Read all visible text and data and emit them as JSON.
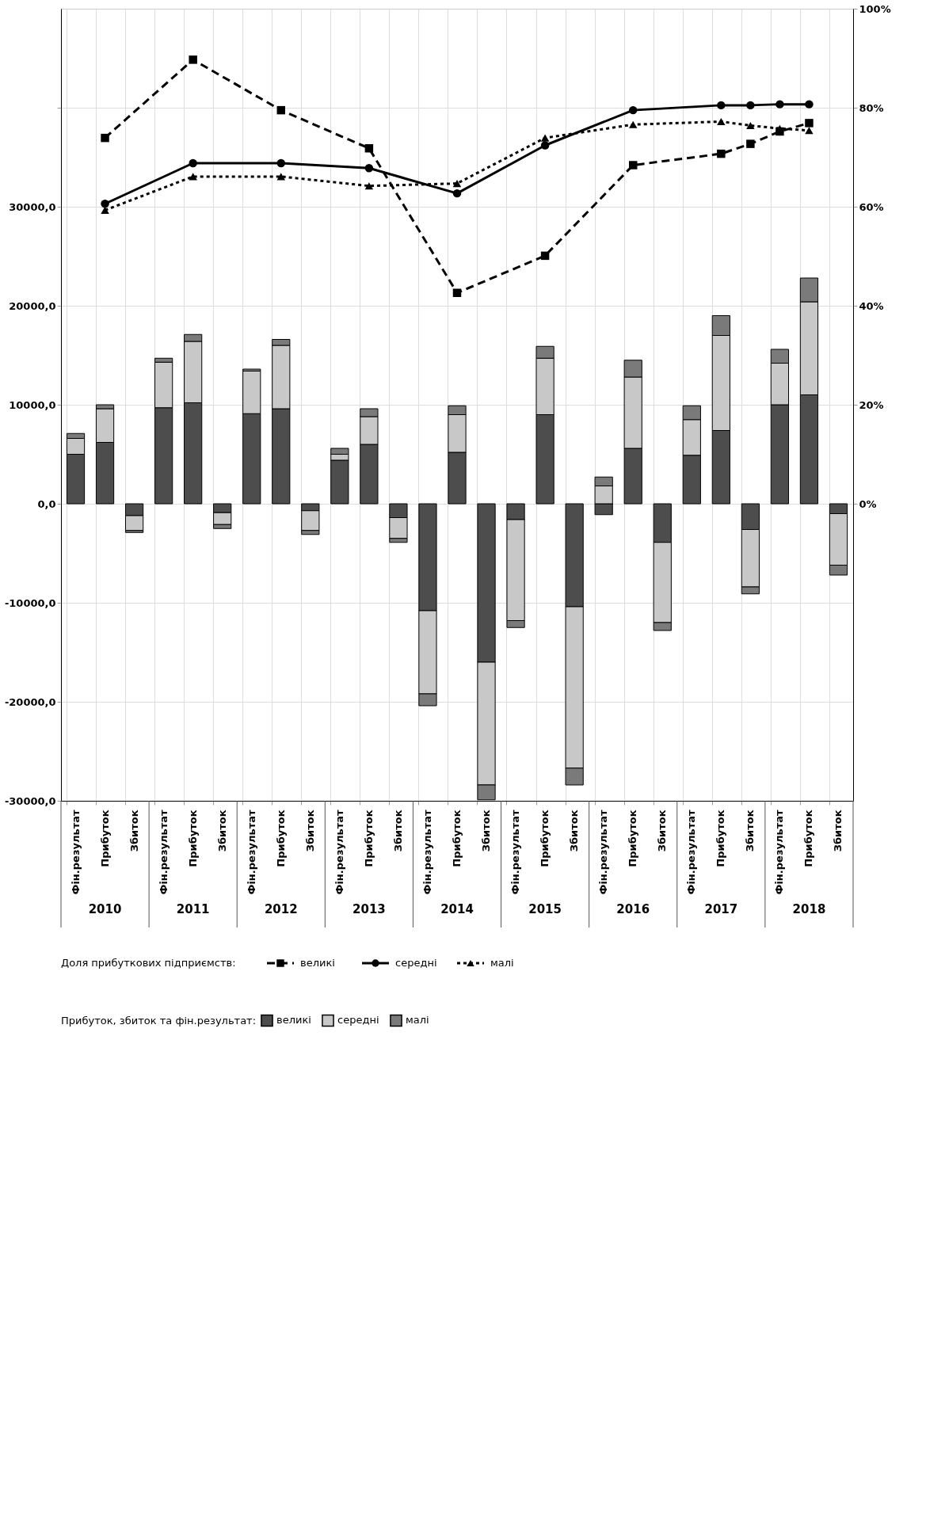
{
  "chart_data": {
    "type": "bar",
    "stacked": true,
    "categories": [
      "Фін.результат",
      "Прибуток",
      "Збиток",
      "Фін.результат",
      "Прибуток",
      "Збиток",
      "Фін.результат",
      "Прибуток",
      "Збиток",
      "Фін.результат",
      "Прибуток",
      "Збиток",
      "Фін.результат",
      "Прибуток",
      "Збиток",
      "Фін.результат",
      "Прибуток",
      "Збиток",
      "Фін.результат",
      "Прибуток",
      "Збиток",
      "Фін.результат",
      "Прибуток",
      "Збиток",
      "Фін.результат",
      "Прибуток",
      "Збиток"
    ],
    "series": [
      {
        "name": "великі",
        "color": "#4d4d4d",
        "values": [
          5000,
          6200,
          -1200,
          9700,
          10200,
          -900,
          9100,
          9600,
          -700,
          4400,
          6000,
          -1400,
          -10800,
          5200,
          -16000,
          -1600,
          9000,
          -10400,
          -1100,
          5600,
          -3900,
          4900,
          7400,
          -2600,
          10000,
          11000,
          -1000
        ]
      },
      {
        "name": "середні",
        "color": "#c8c8c8",
        "values": [
          1600,
          3400,
          -1500,
          4600,
          6200,
          -1200,
          4300,
          6400,
          -2000,
          600,
          2800,
          -2100,
          -8400,
          3800,
          -12400,
          -10200,
          5700,
          -16300,
          1800,
          7200,
          -8100,
          3600,
          9600,
          -5800,
          4200,
          9400,
          -5200
        ]
      },
      {
        "name": "малі",
        "color": "#7a7a7a",
        "values": [
          500,
          400,
          -200,
          400,
          700,
          -400,
          200,
          600,
          -400,
          600,
          800,
          -400,
          -1200,
          900,
          -1500,
          -700,
          1200,
          -1700,
          900,
          1700,
          -800,
          1400,
          2000,
          -700,
          1400,
          2400,
          -1000
        ]
      },
      {
        "name": "великі",
        "type": "line",
        "axis": "y2",
        "color": "#000000",
        "marker": "square",
        "line_style": "dashed",
        "values": [
          null,
          73.9,
          null,
          null,
          89.7,
          null,
          null,
          79.5,
          null,
          null,
          71.8,
          null,
          null,
          42.6,
          null,
          null,
          50.1,
          null,
          null,
          68.4,
          null,
          null,
          70.7,
          72.7,
          75.2,
          76.9,
          null
        ]
      },
      {
        "name": "середні",
        "type": "line",
        "axis": "y2",
        "color": "#000000",
        "marker": "circle",
        "line_style": "solid",
        "values": [
          null,
          60.6,
          null,
          null,
          68.8,
          null,
          null,
          68.8,
          null,
          null,
          67.8,
          null,
          null,
          62.7,
          null,
          null,
          72.4,
          null,
          null,
          79.5,
          null,
          null,
          80.5,
          80.5,
          80.7,
          80.7,
          null
        ]
      },
      {
        "name": "малі",
        "type": "line",
        "axis": "y2",
        "color": "#000000",
        "marker": "triangle",
        "line_style": "dotted",
        "values": [
          null,
          59.3,
          null,
          null,
          66.1,
          null,
          null,
          66.1,
          null,
          null,
          64.2,
          null,
          null,
          64.7,
          null,
          null,
          73.9,
          null,
          null,
          76.6,
          null,
          null,
          77.2,
          76.4,
          75.8,
          75.4,
          null
        ]
      }
    ],
    "ylim": [
      -30000,
      50000
    ],
    "yticks": [
      {
        "value": -30000,
        "label": "-30000,0"
      },
      {
        "value": -20000,
        "label": "-20000,0"
      },
      {
        "value": -10000,
        "label": "-10000,0"
      },
      {
        "value": 0,
        "label": "0,0"
      },
      {
        "value": 10000,
        "label": "10000,0"
      },
      {
        "value": 20000,
        "label": "20000,0"
      },
      {
        "value": 30000,
        "label": "30000,0"
      },
      {
        "value": 40000,
        "label": null
      }
    ],
    "y2lim": [
      -60,
      100
    ],
    "y2ticks": [
      {
        "value": 0,
        "label": "0%"
      },
      {
        "value": 20,
        "label": "20%"
      },
      {
        "value": 40,
        "label": "40%"
      },
      {
        "value": 60,
        "label": "60%"
      },
      {
        "value": 80,
        "label": "80%"
      },
      {
        "value": 100,
        "label": "100%"
      }
    ],
    "grid": true,
    "legend": "bottom",
    "legend_title": "Прибуток, збиток та фін.результат:",
    "annotations": [
      "2010",
      "2011",
      "2012",
      "2013",
      "2014",
      "2015",
      "2016",
      "2017",
      "2018",
      "Доля прибуткових підприємств:"
    ]
  }
}
